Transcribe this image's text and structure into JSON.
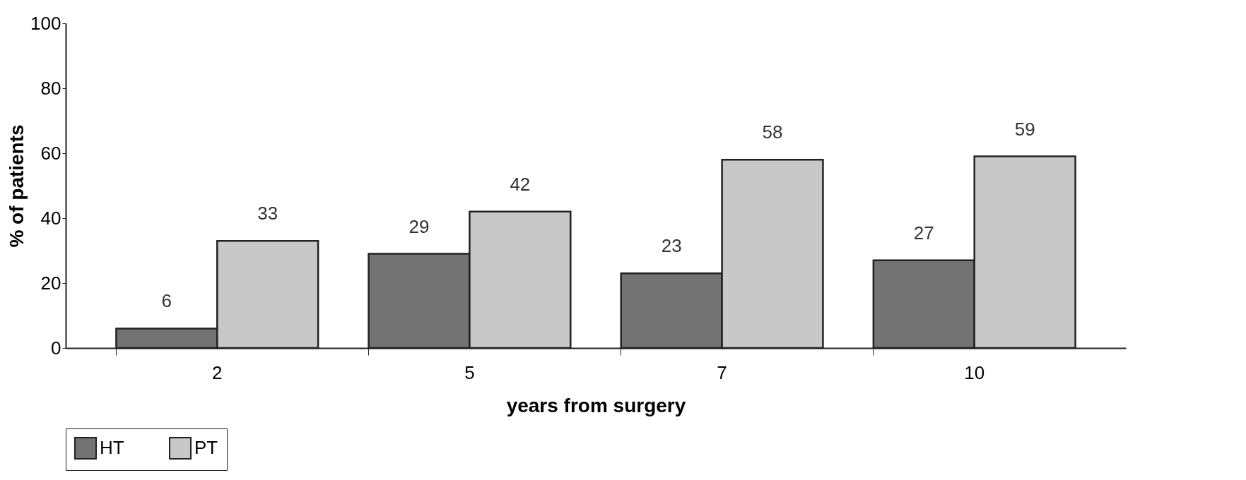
{
  "chart_data": {
    "type": "bar",
    "xlabel": "years from surgery",
    "ylabel": "% of patients",
    "categories": [
      "2",
      "5",
      "7",
      "10"
    ],
    "series": [
      {
        "name": "HT",
        "color": "#737373",
        "values": [
          6,
          29,
          23,
          27
        ]
      },
      {
        "name": "PT",
        "color": "#c8c8c8",
        "values": [
          33,
          42,
          58,
          59
        ]
      }
    ],
    "ylim": [
      0,
      100
    ],
    "yticks": [
      0,
      20,
      40,
      60,
      80,
      100
    ],
    "grid": false,
    "legend": "bottom",
    "data_labels": true
  }
}
